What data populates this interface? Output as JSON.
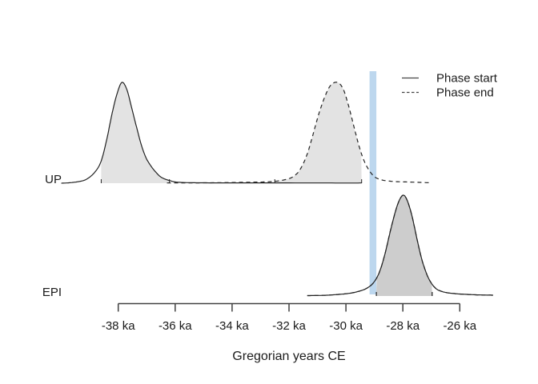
{
  "chart_data": {
    "type": "area",
    "title": "",
    "xlabel": "Gregorian years CE",
    "x_axis": {
      "ticks_ka": [
        -38,
        -36,
        -34,
        -32,
        -30,
        -28,
        -26
      ],
      "labels": [
        "-38 ka",
        "-36 ka",
        "-34 ka",
        "-32 ka",
        "-30 ka",
        "-28 ka",
        "-26 ka"
      ],
      "range_ka": [
        -40.3,
        -24.7
      ]
    },
    "legend": [
      {
        "label": "Phase start",
        "style": "solid"
      },
      {
        "label": "Phase end",
        "style": "dashed"
      }
    ],
    "colors": {
      "curve_stroke": "#222222",
      "up_fill": "#e3e3e3",
      "epi_fill": "#cdcdcd",
      "event_band": "#bdd7ee",
      "axis": "#404040"
    },
    "event_band": {
      "from_ka": -29.17,
      "to_ka": -28.93
    },
    "rows": [
      {
        "label": "UP",
        "fill": "#e3e3e3",
        "curves": [
          {
            "name": "phase-start",
            "style": "solid",
            "hpd_ka": [
              -38.6,
              -36.2
            ],
            "points": [
              [
                -40.0,
                0
              ],
              [
                -39.73,
                0.004
              ],
              [
                -39.39,
                0.016
              ],
              [
                -39.11,
                0.04
              ],
              [
                -38.82,
                0.11
              ],
              [
                -38.6,
                0.22
              ],
              [
                -38.4,
                0.44
              ],
              [
                -38.21,
                0.7
              ],
              [
                -38.04,
                0.89
              ],
              [
                -37.87,
                1.0
              ],
              [
                -37.7,
                0.93
              ],
              [
                -37.53,
                0.75
              ],
              [
                -37.36,
                0.56
              ],
              [
                -37.19,
                0.38
              ],
              [
                -37.02,
                0.25
              ],
              [
                -36.85,
                0.17
              ],
              [
                -36.68,
                0.11
              ],
              [
                -36.52,
                0.065
              ],
              [
                -36.35,
                0.04
              ],
              [
                -36.18,
                0.025
              ],
              [
                -36.01,
                0.013
              ],
              [
                -35.73,
                0.007
              ],
              [
                -35.16,
                0.004
              ],
              [
                -33.76,
                0.003
              ],
              [
                -32.35,
                0.003
              ],
              [
                -30.5,
                0.002
              ],
              [
                -29.45,
                0.002
              ]
            ]
          },
          {
            "name": "phase-end",
            "style": "dashed",
            "hpd_ka": [
              -32.5,
              -29.45
            ],
            "points": [
              [
                -36.29,
                0.002
              ],
              [
                -34.88,
                0.004
              ],
              [
                -33.76,
                0.008
              ],
              [
                -32.63,
                0.016
              ],
              [
                -32.07,
                0.04
              ],
              [
                -31.78,
                0.08
              ],
              [
                -31.56,
                0.16
              ],
              [
                -31.36,
                0.29
              ],
              [
                -31.16,
                0.48
              ],
              [
                -30.94,
                0.7
              ],
              [
                -30.71,
                0.88
              ],
              [
                -30.52,
                0.976
              ],
              [
                -30.29,
                1.0
              ],
              [
                -30.09,
                0.93
              ],
              [
                -29.9,
                0.76
              ],
              [
                -29.7,
                0.54
              ],
              [
                -29.53,
                0.36
              ],
              [
                -29.36,
                0.22
              ],
              [
                -29.19,
                0.13
              ],
              [
                -29.02,
                0.07
              ],
              [
                -28.85,
                0.042
              ],
              [
                -28.63,
                0.026
              ],
              [
                -28.26,
                0.016
              ],
              [
                -27.84,
                0.012
              ],
              [
                -27.42,
                0.008
              ],
              [
                -27.0,
                0.004
              ]
            ]
          }
        ]
      },
      {
        "label": "EPI",
        "fill": "#cdcdcd",
        "curves": [
          {
            "name": "phase-start",
            "style": "solid",
            "hpd_ka": [
              -28.93,
              -26.97
            ],
            "points": [
              [
                -31.36,
                0.004
              ],
              [
                -30.66,
                0.008
              ],
              [
                -29.95,
                0.024
              ],
              [
                -29.53,
                0.048
              ],
              [
                -29.25,
                0.08
              ],
              [
                -29.02,
                0.136
              ],
              [
                -28.82,
                0.24
              ],
              [
                -28.63,
                0.416
              ],
              [
                -28.43,
                0.656
              ],
              [
                -28.26,
                0.84
              ],
              [
                -28.12,
                0.952
              ],
              [
                -27.98,
                1.0
              ],
              [
                -27.84,
                0.944
              ],
              [
                -27.67,
                0.784
              ],
              [
                -27.5,
                0.56
              ],
              [
                -27.33,
                0.36
              ],
              [
                -27.16,
                0.216
              ],
              [
                -27.0,
                0.128
              ],
              [
                -26.83,
                0.072
              ],
              [
                -26.66,
                0.048
              ],
              [
                -26.43,
                0.032
              ],
              [
                -26.01,
                0.02
              ],
              [
                -25.45,
                0.012
              ],
              [
                -24.83,
                0.008
              ]
            ]
          },
          {
            "name": "phase-end",
            "style": "dashed",
            "hpd_ka": [
              -28.93,
              -26.97
            ],
            "points": [
              [
                -31.36,
                0.004
              ],
              [
                -30.66,
                0.008
              ],
              [
                -29.95,
                0.024
              ],
              [
                -29.53,
                0.048
              ],
              [
                -29.25,
                0.08
              ],
              [
                -29.02,
                0.136
              ],
              [
                -28.82,
                0.24
              ],
              [
                -28.63,
                0.416
              ],
              [
                -28.43,
                0.656
              ],
              [
                -28.26,
                0.84
              ],
              [
                -28.12,
                0.952
              ],
              [
                -27.98,
                1.0
              ],
              [
                -27.84,
                0.944
              ],
              [
                -27.67,
                0.784
              ],
              [
                -27.5,
                0.56
              ],
              [
                -27.33,
                0.36
              ],
              [
                -27.16,
                0.216
              ],
              [
                -27.0,
                0.128
              ],
              [
                -26.83,
                0.072
              ],
              [
                -26.66,
                0.048
              ],
              [
                -26.43,
                0.032
              ],
              [
                -26.01,
                0.02
              ],
              [
                -25.45,
                0.012
              ],
              [
                -24.83,
                0.008
              ]
            ]
          }
        ]
      }
    ]
  }
}
